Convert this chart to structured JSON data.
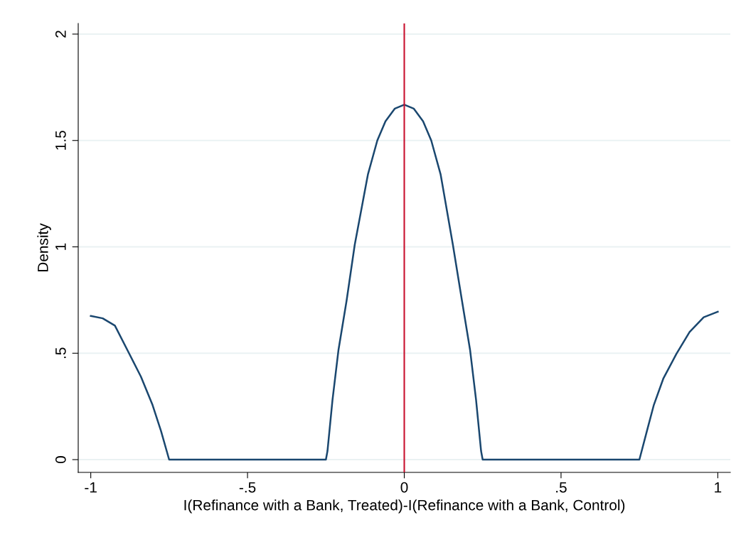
{
  "chart_data": {
    "type": "line",
    "xlabel": "I(Refinance with a Bank, Treated)-I(Refinance with a Bank, Control)",
    "ylabel": "Density",
    "series": [
      {
        "color": "#1a476f",
        "x": [
          -1,
          -0.962,
          -0.923,
          -0.878,
          -0.84,
          -0.803,
          -0.776,
          -0.75,
          -0.25,
          -0.245,
          -0.229,
          -0.21,
          -0.184,
          -0.158,
          -0.116,
          -0.086,
          -0.06,
          -0.03,
          0,
          0.03,
          0.06,
          0.086,
          0.116,
          0.155,
          0.184,
          0.21,
          0.229,
          0.245,
          0.25,
          0.75,
          0.774,
          0.796,
          0.826,
          0.868,
          0.91,
          0.955,
          1
        ],
        "values": [
          0.675,
          0.664,
          0.63,
          0.5,
          0.39,
          0.257,
          0.135,
          0,
          0,
          0.04,
          0.28,
          0.514,
          0.747,
          1.01,
          1.34,
          1.5,
          1.59,
          1.65,
          1.668,
          1.65,
          1.59,
          1.5,
          1.34,
          1.01,
          0.747,
          0.514,
          0.28,
          0.04,
          0,
          0,
          0.135,
          0.257,
          0.38,
          0.497,
          0.6,
          0.669,
          0.695
        ]
      }
    ],
    "xlim": [
      -1.04,
      1.04
    ],
    "ylim": [
      -0.06,
      2.05
    ],
    "xticks": [
      {
        "value": -1,
        "label": "-1"
      },
      {
        "value": -0.5,
        "label": "-.5"
      },
      0,
      {
        "value": 0.5,
        "label": ".5"
      },
      1
    ],
    "yticks": [
      0,
      {
        "value": 0.5,
        "label": ".5"
      },
      1,
      {
        "value": 1.5,
        "label": "1.5"
      },
      2
    ],
    "ref_lines": [
      {
        "axis": "x",
        "value": 0,
        "color": "#c8102e"
      }
    ],
    "grid": "y",
    "legend": false,
    "marker": "none",
    "line_style": "solid"
  }
}
